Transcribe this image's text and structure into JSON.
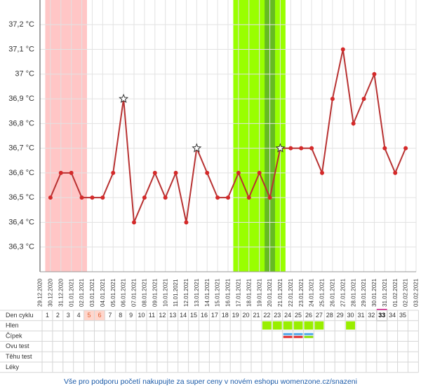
{
  "chart_data": {
    "type": "line",
    "x": [
      "29.12.2020",
      "30.12.2020",
      "31.12.2020",
      "01.01.2021",
      "02.01.2021",
      "03.01.2021",
      "04.01.2021",
      "05.01.2021",
      "06.01.2021",
      "07.01.2021",
      "08.01.2021",
      "09.01.2021",
      "10.01.2021",
      "11.01.2021",
      "12.01.2021",
      "13.01.2021",
      "14.01.2021",
      "15.01.2021",
      "16.01.2021",
      "17.01.2021",
      "18.01.2021",
      "19.01.2021",
      "20.01.2021",
      "21.01.2021",
      "22.01.2021",
      "23.01.2021",
      "24.01.2021",
      "25.01.2021",
      "26.01.2021",
      "27.01.2021",
      "28.01.2021",
      "29.01.2021",
      "30.01.2021",
      "31.01.2021",
      "01.02.2021",
      "02.02.2021",
      "03.02.2021"
    ],
    "values": [
      null,
      36.5,
      36.6,
      36.6,
      36.5,
      36.5,
      36.5,
      36.6,
      36.9,
      36.4,
      36.5,
      36.6,
      36.5,
      36.6,
      36.4,
      36.7,
      36.6,
      36.5,
      36.5,
      36.6,
      36.5,
      36.6,
      36.5,
      36.7,
      36.7,
      36.7,
      36.7,
      36.6,
      36.9,
      37.1,
      36.8,
      36.9,
      37.0,
      36.7,
      36.6,
      36.7,
      null
    ],
    "star_points": [
      8,
      15,
      23
    ],
    "color": "#b83232",
    "marker_color": "#d42a2a",
    "ylim": [
      36.2,
      37.3
    ],
    "yticks": [
      {
        "value": 36.3,
        "label": "36,3 °C"
      },
      {
        "value": 36.4,
        "label": "36,4 °C"
      },
      {
        "value": 36.5,
        "label": "36,5 °C"
      },
      {
        "value": 36.6,
        "label": "36,6 °C"
      },
      {
        "value": 36.7,
        "label": "36,7 °C"
      },
      {
        "value": 36.8,
        "label": "36,8 °C"
      },
      {
        "value": 36.9,
        "label": "36,9 °C"
      },
      {
        "value": 37,
        "label": "37 °C"
      },
      {
        "value": 37.1,
        "label": "37,1 °C"
      },
      {
        "value": 37.2,
        "label": "37,2 °C"
      }
    ],
    "grid": true,
    "bands": [
      {
        "start": "30.12.2020",
        "end": "02.01.2021",
        "color": "#ffc6c6"
      },
      {
        "start": "17.01.2021",
        "end": "21.01.2021",
        "color": "#99ff00"
      },
      {
        "start": "20.01.2021",
        "end": "20.01.2021",
        "color": "#66bb22"
      }
    ]
  },
  "table": {
    "row_labels": [
      "Den cyklu",
      "Hlen",
      "Čípek",
      "Ovu test",
      "Těhu test",
      "Léky"
    ],
    "days": [
      1,
      2,
      3,
      4,
      5,
      6,
      7,
      8,
      9,
      10,
      11,
      12,
      13,
      14,
      15,
      16,
      17,
      18,
      19,
      20,
      21,
      22,
      23,
      24,
      25,
      26,
      27,
      28,
      29,
      30,
      31,
      32,
      33,
      34,
      35
    ],
    "highlight_days": [
      5,
      6
    ],
    "today": 33,
    "hlen": {
      "days": [
        22,
        23,
        24,
        25,
        26,
        27,
        30
      ],
      "color": "#99ee00"
    },
    "cipek": [
      {
        "day": 24,
        "colors": [
          "#4aa3e8",
          "#e02828"
        ]
      },
      {
        "day": 25,
        "colors": [
          "#4aa3e8",
          "#e02828"
        ]
      },
      {
        "day": 26,
        "colors": [
          "#4aa3e8",
          "#88dd00"
        ]
      }
    ]
  },
  "footer": "Vše pro podporu početí nakupujte za super ceny v novém eshopu womenzone.cz/snazeni"
}
